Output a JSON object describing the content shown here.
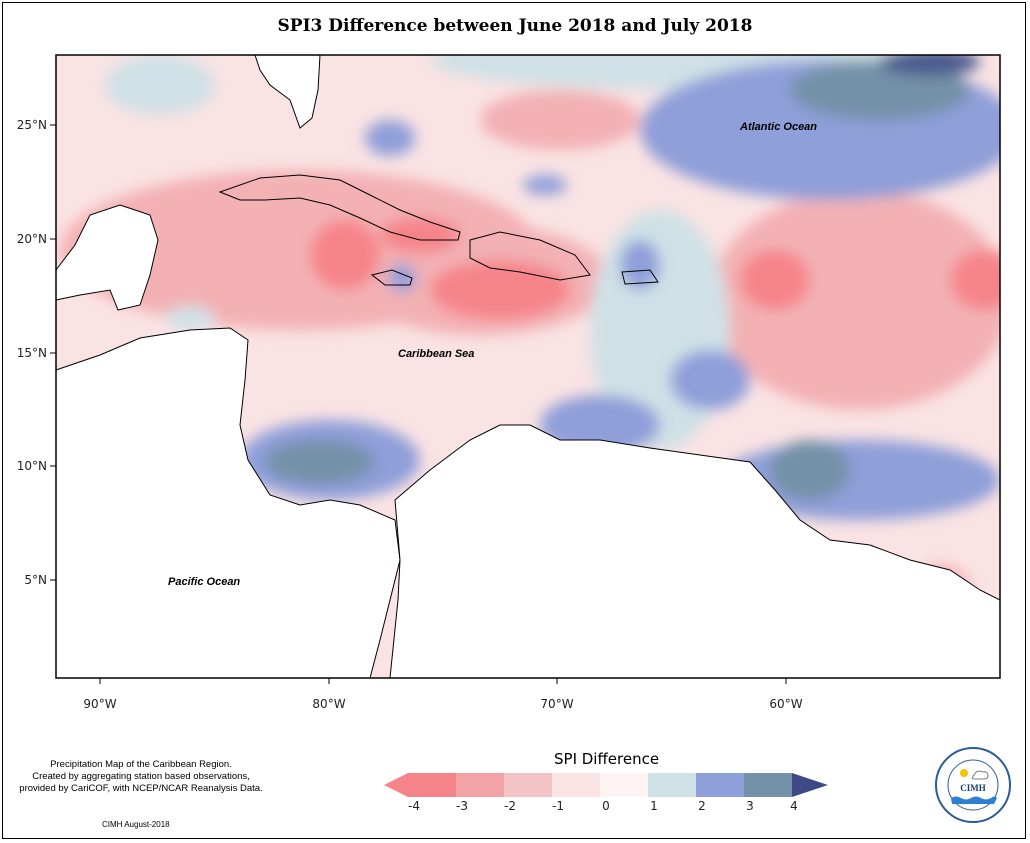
{
  "title": "SPI3 Difference between June 2018 and July 2018",
  "axes": {
    "lat_ticks": [
      "25°N",
      "20°N",
      "15°N",
      "10°N",
      "5°N"
    ],
    "lon_ticks": [
      "90°W",
      "80°W",
      "70°W",
      "60°W"
    ]
  },
  "labels": {
    "atlantic": "Atlantic Ocean",
    "caribbean": "Caribbean Sea",
    "pacific": "Pacific Ocean"
  },
  "note": [
    "Precipitation Map of the Caribbean Region.",
    "Created by aggregating station based observations,",
    "provided by CariCOF, with NCEP/NCAR Reanalysis Data."
  ],
  "credit": "CIMH August-2018",
  "legend": {
    "title": "SPI Difference",
    "ticks": [
      "-4",
      "-3",
      "-2",
      "-1",
      "0",
      "1",
      "2",
      "3",
      "4"
    ],
    "colors": [
      "#f5848a",
      "#f3a3a6",
      "#f3c4c6",
      "#fae3e4",
      "#fff4f4",
      "#cfe1e6",
      "#8f9fd9",
      "#7391a8",
      "#4c5b8e",
      "#3e4a85"
    ]
  },
  "logo": {
    "text": "CIMH",
    "ring_text": "Caribbean Institute for Meteorology and Hydrology"
  },
  "colors": {
    "strong_dry": "#f5848a",
    "dry": "#f3b1b4",
    "light_dry": "#fae3e4",
    "neutral": "#fff4f4",
    "light_wet": "#cfe1e6",
    "wet": "#8f9fd9",
    "very_wet": "#7391a8",
    "extreme_wet": "#4c5b8e"
  }
}
